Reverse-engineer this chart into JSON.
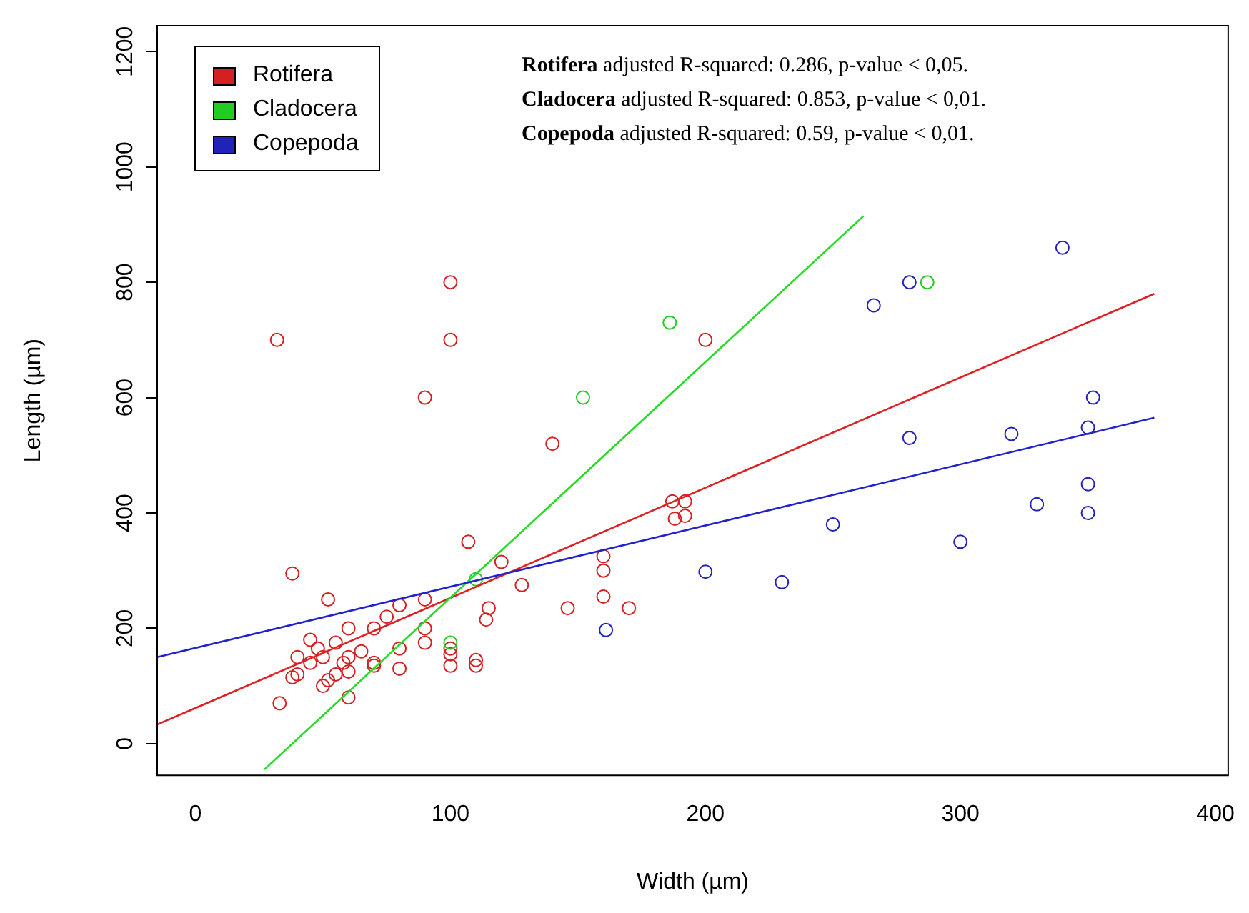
{
  "chart_data": {
    "type": "scatter",
    "xlabel": "Width (µm)",
    "ylabel": "Length (µm)",
    "xlim": [
      -15,
      405
    ],
    "ylim": [
      -55,
      1245
    ],
    "xticks": [
      0,
      100,
      200,
      300,
      400
    ],
    "yticks": [
      0,
      200,
      400,
      600,
      800,
      1000,
      1200
    ],
    "grid": false,
    "legend": "top left",
    "marker": "circle",
    "annotations": [
      "Rotifera adjusted R-squared: 0.286, p-value < 0,05.",
      "Cladocera adjusted R-squared: 0.853, p-value < 0,01.",
      "Copepoda adjusted R-squared: 0.59, p-value < 0,01."
    ],
    "series": [
      {
        "name": "Rotifera",
        "color": "#d42020",
        "x": [
          32,
          38,
          52,
          90,
          100,
          100,
          140,
          200,
          107,
          120,
          128,
          160,
          160,
          160,
          146,
          170,
          114,
          115,
          110,
          110,
          100,
          100,
          100,
          90,
          90,
          90,
          80,
          80,
          80,
          70,
          70,
          70,
          75,
          60,
          60,
          60,
          60,
          55,
          55,
          50,
          50,
          48,
          45,
          45,
          40,
          40,
          38,
          33,
          187,
          192,
          188,
          192,
          65,
          58,
          52
        ],
        "values": [
          700,
          295,
          250,
          600,
          800,
          700,
          520,
          700,
          350,
          315,
          275,
          325,
          300,
          255,
          235,
          235,
          215,
          235,
          145,
          135,
          135,
          155,
          165,
          175,
          200,
          250,
          240,
          165,
          130,
          200,
          140,
          135,
          220,
          200,
          150,
          125,
          80,
          120,
          175,
          100,
          150,
          165,
          180,
          140,
          120,
          150,
          115,
          70,
          420,
          420,
          390,
          395,
          160,
          140,
          110
        ]
      },
      {
        "name": "Cladocera",
        "color": "#22cc22",
        "x": [
          100,
          110,
          152,
          186,
          287
        ],
        "values": [
          175,
          285,
          600,
          730,
          800
        ]
      },
      {
        "name": "Copepoda",
        "color": "#2222bb",
        "x": [
          161,
          200,
          230,
          250,
          266,
          280,
          280,
          300,
          320,
          330,
          340,
          350,
          350,
          350,
          352
        ],
        "values": [
          197,
          298,
          280,
          380,
          760,
          800,
          530,
          350,
          537,
          415,
          860,
          450,
          400,
          548,
          600
        ]
      },
      {
        "type": "line",
        "marker": "none",
        "color": "#e02020",
        "x": [
          -15,
          376
        ],
        "values": [
          33,
          780
        ]
      },
      {
        "type": "line",
        "marker": "none",
        "color": "#22dd22",
        "x": [
          27,
          262
        ],
        "values": [
          -45,
          915
        ]
      },
      {
        "type": "line",
        "marker": "none",
        "color": "#2222cc",
        "x": [
          -15,
          376
        ],
        "values": [
          150,
          565
        ]
      }
    ]
  }
}
